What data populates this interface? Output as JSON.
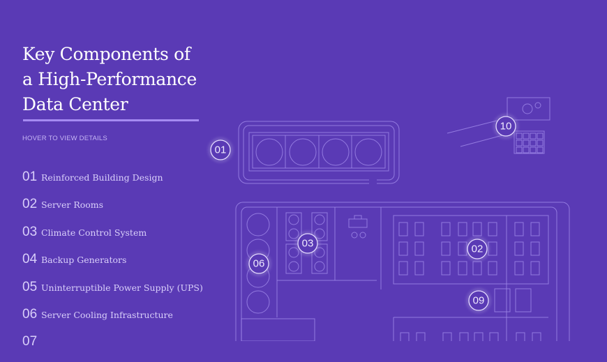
{
  "title": "Key Components of\na High-Performance\nData Center",
  "hint": "HOVER TO VIEW DETAILS",
  "items": [
    {
      "num": "01",
      "label": "Reinforced Building Design"
    },
    {
      "num": "02",
      "label": "Server Rooms"
    },
    {
      "num": "03",
      "label": "Climate Control System"
    },
    {
      "num": "04",
      "label": "Backup Generators"
    },
    {
      "num": "05",
      "label": "Uninterruptible Power Supply (UPS)"
    },
    {
      "num": "06",
      "label": "Server Cooling Infrastructure"
    },
    {
      "num": "07",
      "label": ""
    }
  ],
  "markers": [
    "01",
    "02",
    "03",
    "06",
    "09",
    "10"
  ],
  "colors": {
    "background": "#5a3ab5",
    "accent": "#a58af2",
    "line": "#9d86e8"
  }
}
